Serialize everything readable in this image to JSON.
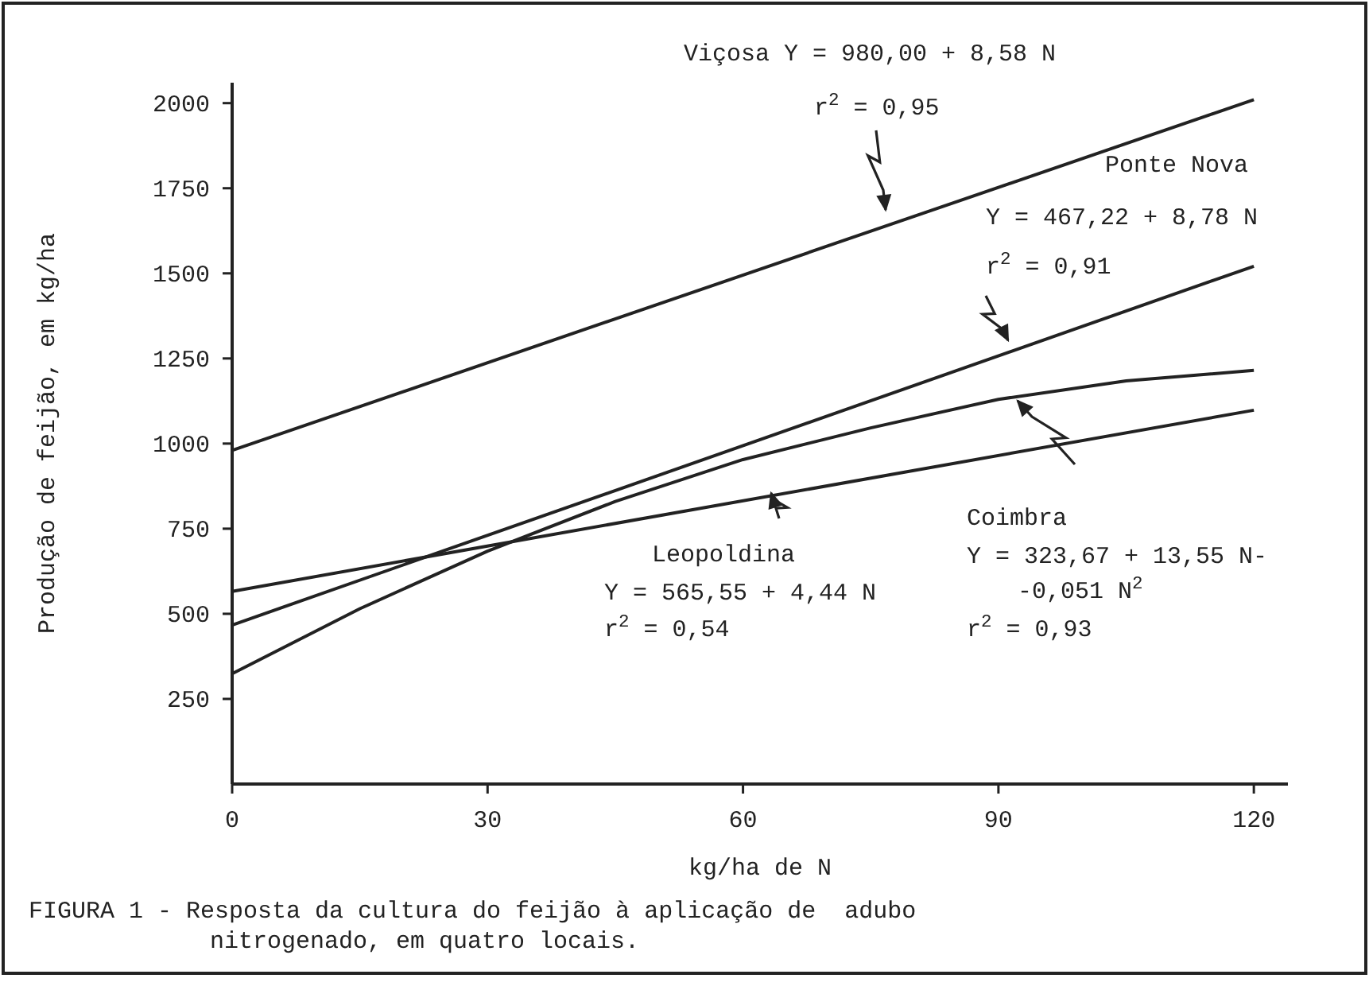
{
  "chart_data": {
    "type": "line",
    "title": "FIGURA 1 - Resposta da cultura do feijão à aplicação de  adubo nitrogenado, em quatro locais.",
    "xlabel": "kg/ha de N",
    "ylabel": "Produção de feijão, em kg/ha",
    "xlim": [
      0,
      124
    ],
    "ylim": [
      0,
      2060
    ],
    "xticks": [
      0,
      30,
      60,
      90,
      120
    ],
    "yticks": [
      250,
      500,
      750,
      1000,
      1250,
      1500,
      1750,
      2000
    ],
    "tick_labels": true,
    "grid": false,
    "marker": "none",
    "line_style": "solid",
    "series": [
      {
        "color": "#222222",
        "x": [
          0,
          120
        ],
        "values": [
          980,
          2010
        ]
      },
      {
        "color": "#222222",
        "x": [
          0,
          120
        ],
        "values": [
          467,
          1521
        ]
      },
      {
        "color": "#222222",
        "x": [
          0,
          120
        ],
        "values": [
          566,
          1098
        ]
      },
      {
        "color": "#222222",
        "x": [
          0,
          15,
          30,
          45,
          60,
          75,
          90,
          105,
          120
        ],
        "values": [
          324,
          515,
          684,
          830,
          953,
          1046,
          1130,
          1184,
          1215
        ]
      }
    ],
    "annotations": [
      "Viçosa Y = 980,00 + 8,58 N",
      "r$^{2}$ = 0,95",
      "Ponte Nova",
      "Y = 467,22 + 8,78 N",
      "r$^{2}$ = 0,91",
      "Leopoldina",
      "Y = 565,55 + 4,44 N",
      "r$^{2}$ = 0,54",
      "Coimbra",
      "Y = 323,67 + 13,55 N-",
      "-0,051 N$^{2}$",
      "r$^{2}$ = 0,93"
    ]
  }
}
